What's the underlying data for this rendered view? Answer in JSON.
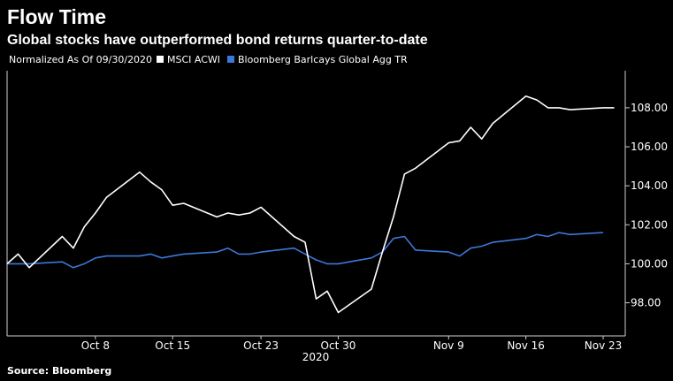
{
  "chart_data": {
    "type": "line",
    "title": "Flow Time",
    "subtitle": "Global stocks have outperformed bond returns quarter-to-date",
    "legend_note": "Normalized As Of 09/30/2020",
    "legend_placement": "top-left",
    "source": "Source: Bloomberg",
    "year_label": "2020",
    "x_tick_labels": [
      "Oct 8",
      "Oct 15",
      "Oct 23",
      "Oct 30",
      "Nov 9",
      "Nov 16",
      "Nov 23"
    ],
    "x_tick_dates": [
      "2020-10-08",
      "2020-10-15",
      "2020-10-23",
      "2020-10-30",
      "2020-11-09",
      "2020-11-16",
      "2020-11-23"
    ],
    "y_ticks": [
      "98.00",
      "100.00",
      "102.00",
      "104.00",
      "106.00",
      "108.00"
    ],
    "ylim": [
      96.3,
      109.9
    ],
    "xlim": [
      "2020-09-30",
      "2020-11-25"
    ],
    "grid": false,
    "series": [
      {
        "name": "MSCI ACWI",
        "color": "#ffffff",
        "x": [
          "2020-09-30",
          "2020-10-01",
          "2020-10-02",
          "2020-10-05",
          "2020-10-06",
          "2020-10-07",
          "2020-10-08",
          "2020-10-09",
          "2020-10-12",
          "2020-10-13",
          "2020-10-14",
          "2020-10-15",
          "2020-10-16",
          "2020-10-19",
          "2020-10-20",
          "2020-10-21",
          "2020-10-22",
          "2020-10-23",
          "2020-10-26",
          "2020-10-27",
          "2020-10-28",
          "2020-10-29",
          "2020-10-30",
          "2020-11-02",
          "2020-11-03",
          "2020-11-04",
          "2020-11-05",
          "2020-11-06",
          "2020-11-09",
          "2020-11-10",
          "2020-11-11",
          "2020-11-12",
          "2020-11-13",
          "2020-11-16",
          "2020-11-17",
          "2020-11-18",
          "2020-11-19",
          "2020-11-20",
          "2020-11-23",
          "2020-11-24"
        ],
        "values": [
          100.0,
          100.5,
          99.8,
          101.4,
          100.8,
          101.9,
          102.6,
          103.4,
          104.7,
          104.2,
          103.8,
          103.0,
          103.1,
          102.4,
          102.6,
          102.5,
          102.6,
          102.9,
          101.4,
          101.1,
          98.2,
          98.6,
          97.5,
          98.7,
          100.6,
          102.4,
          104.6,
          104.9,
          106.2,
          106.3,
          107.0,
          106.4,
          107.2,
          108.6,
          108.4,
          108.0,
          108.0,
          107.9,
          108.0,
          108.0
        ]
      },
      {
        "name": "Bloomberg Barlcays Global Agg TR",
        "color": "#3c78d8",
        "x": [
          "2020-09-30",
          "2020-10-01",
          "2020-10-02",
          "2020-10-05",
          "2020-10-06",
          "2020-10-07",
          "2020-10-08",
          "2020-10-09",
          "2020-10-12",
          "2020-10-13",
          "2020-10-14",
          "2020-10-15",
          "2020-10-16",
          "2020-10-19",
          "2020-10-20",
          "2020-10-21",
          "2020-10-22",
          "2020-10-23",
          "2020-10-26",
          "2020-10-27",
          "2020-10-28",
          "2020-10-29",
          "2020-10-30",
          "2020-11-02",
          "2020-11-03",
          "2020-11-04",
          "2020-11-05",
          "2020-11-06",
          "2020-11-09",
          "2020-11-10",
          "2020-11-11",
          "2020-11-12",
          "2020-11-13",
          "2020-11-16",
          "2020-11-17",
          "2020-11-18",
          "2020-11-19",
          "2020-11-20",
          "2020-11-23"
        ],
        "values": [
          100.0,
          100.0,
          100.0,
          100.1,
          99.8,
          100.0,
          100.3,
          100.4,
          100.4,
          100.5,
          100.3,
          100.4,
          100.5,
          100.6,
          100.8,
          100.5,
          100.5,
          100.6,
          100.8,
          100.5,
          100.2,
          100.0,
          100.0,
          100.3,
          100.6,
          101.3,
          101.4,
          100.7,
          100.6,
          100.4,
          100.8,
          100.9,
          101.1,
          101.3,
          101.5,
          101.4,
          101.6,
          101.5,
          101.6
        ]
      }
    ]
  }
}
